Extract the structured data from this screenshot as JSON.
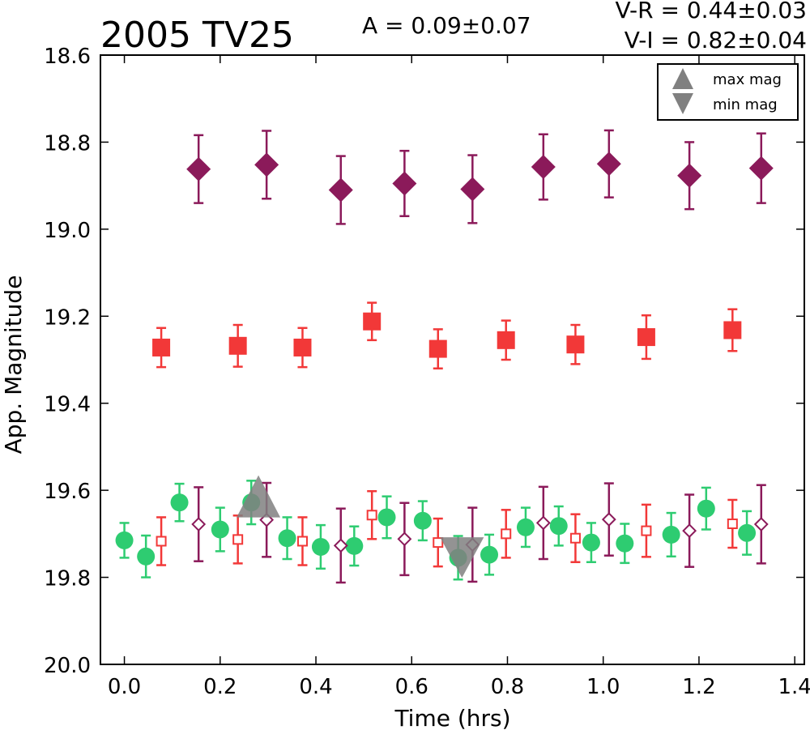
{
  "chart_data": {
    "type": "scatter",
    "title": "2005 TV25",
    "annotations": {
      "amplitude": "A  = 0.09±0.07",
      "v_r": "V-R = 0.44±0.03",
      "v_i": "V-I  = 0.82±0.04"
    },
    "xlabel": "Time (hrs)",
    "ylabel": "App. Magnitude",
    "xlim": [
      -0.05,
      1.42
    ],
    "ylim": [
      18.6,
      20.0
    ],
    "y_inverted": true,
    "xticks": [
      "0.0",
      "0.2",
      "0.4",
      "0.6",
      "0.8",
      "1.0",
      "1.2",
      "1.4"
    ],
    "yticks": [
      "18.6",
      "18.8",
      "19.0",
      "19.2",
      "19.4",
      "19.6",
      "19.8",
      "20.0"
    ],
    "grid": false,
    "legend": {
      "placement": "top-right",
      "entries": [
        {
          "label": "max mag",
          "marker": "triangle-up"
        },
        {
          "label": "min mag",
          "marker": "triangle-down"
        }
      ]
    },
    "series": [
      {
        "marker": "diamond-filled",
        "color": "#8b1a5a",
        "x": [
          0.155,
          0.297,
          0.452,
          0.585,
          0.727,
          0.875,
          1.012,
          1.18,
          1.33
        ],
        "y": [
          18.862,
          18.852,
          18.91,
          18.895,
          18.908,
          18.857,
          18.85,
          18.877,
          18.86
        ],
        "err": [
          0.078,
          0.078,
          0.078,
          0.075,
          0.078,
          0.075,
          0.077,
          0.077,
          0.08
        ]
      },
      {
        "marker": "square-filled",
        "color": "#f23838",
        "x": [
          0.077,
          0.237,
          0.372,
          0.517,
          0.655,
          0.797,
          0.942,
          1.09,
          1.27
        ],
        "y": [
          19.272,
          19.268,
          19.272,
          19.212,
          19.275,
          19.255,
          19.265,
          19.248,
          19.232
        ],
        "err": [
          0.045,
          0.048,
          0.045,
          0.043,
          0.045,
          0.045,
          0.045,
          0.05,
          0.048
        ]
      },
      {
        "marker": "circle-filled",
        "color": "#2ecc71",
        "x": [
          0.0,
          0.045,
          0.115,
          0.2,
          0.265,
          0.34,
          0.41,
          0.48,
          0.548,
          0.623,
          0.697,
          0.762,
          0.838,
          0.907,
          0.975,
          1.045,
          1.142,
          1.215,
          1.3
        ],
        "y": [
          19.715,
          19.752,
          19.628,
          19.69,
          19.628,
          19.71,
          19.73,
          19.728,
          19.662,
          19.67,
          19.755,
          19.748,
          19.685,
          19.682,
          19.72,
          19.722,
          19.702,
          19.642,
          19.698
        ],
        "err": [
          0.04,
          0.048,
          0.043,
          0.05,
          0.05,
          0.048,
          0.05,
          0.045,
          0.048,
          0.045,
          0.05,
          0.046,
          0.045,
          0.045,
          0.045,
          0.045,
          0.05,
          0.048,
          0.05
        ]
      },
      {
        "marker": "square-open",
        "color": "#f23838",
        "x": [
          0.077,
          0.237,
          0.372,
          0.517,
          0.655,
          0.797,
          0.942,
          1.09,
          1.27
        ],
        "y": [
          19.717,
          19.713,
          19.717,
          19.657,
          19.72,
          19.7,
          19.71,
          19.693,
          19.677
        ],
        "err": [
          0.055,
          0.055,
          0.055,
          0.055,
          0.055,
          0.055,
          0.055,
          0.06,
          0.055
        ]
      },
      {
        "marker": "diamond-open",
        "color": "#8b1a5a",
        "x": [
          0.155,
          0.297,
          0.452,
          0.585,
          0.727,
          0.875,
          1.012,
          1.18,
          1.33
        ],
        "y": [
          19.678,
          19.668,
          19.727,
          19.712,
          19.725,
          19.675,
          19.667,
          19.693,
          19.678
        ],
        "err": [
          0.085,
          0.085,
          0.085,
          0.083,
          0.085,
          0.083,
          0.083,
          0.083,
          0.09
        ]
      }
    ],
    "markers": [
      {
        "kind": "max mag",
        "x": 0.28,
        "y": 19.653,
        "color": "#808080"
      },
      {
        "kind": "min mag",
        "x": 0.705,
        "y": 19.76,
        "color": "#808080"
      }
    ]
  }
}
